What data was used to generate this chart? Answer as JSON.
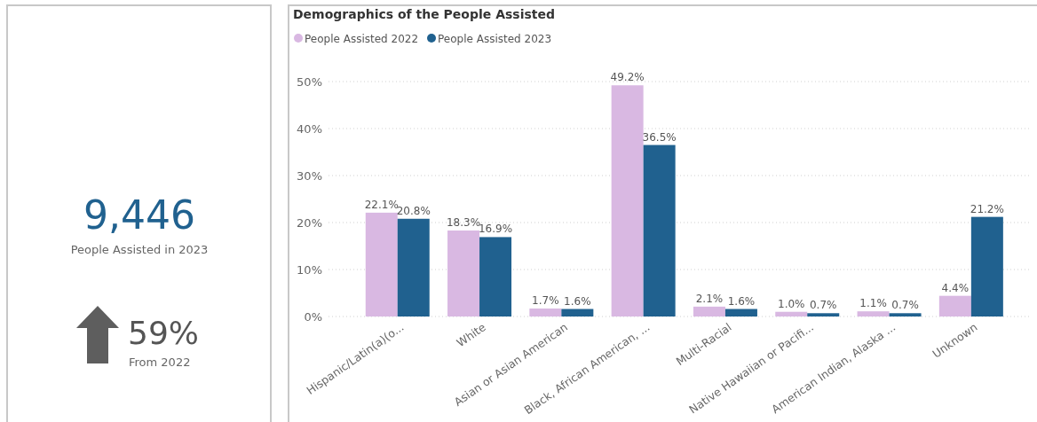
{
  "chart_data": [
    {
      "type": "other",
      "annotations": [
        "9,446",
        "People Assisted in 2023",
        "59%",
        "From 2022"
      ]
    },
    {
      "type": "bar",
      "title": "Demographics of the People Assisted",
      "categories": [
        "Hispanic/Latin(a)(o...",
        "White",
        "Asian or Asian American",
        "Black, African American, ...",
        "Multi-Racial",
        "Native Hawaiian or Pacifi...",
        "American Indian, Alaska ...",
        "Unknown"
      ],
      "series": [
        {
          "name": "People Assisted 2022",
          "color": "#d9b8e2",
          "values": [
            22.1,
            18.3,
            1.7,
            49.2,
            2.1,
            1.0,
            1.1,
            4.4
          ],
          "value_labels": [
            "22.1%",
            "18.3%",
            "1.7%",
            "49.2%",
            "2.1%",
            "1.0%",
            "1.1%",
            "4.4%"
          ]
        },
        {
          "name": "People Assisted 2023",
          "color": "#20618f",
          "values": [
            20.8,
            16.9,
            1.6,
            36.5,
            1.6,
            0.7,
            0.7,
            21.2
          ],
          "value_labels": [
            "20.8%",
            "16.9%",
            "1.6%",
            "36.5%",
            "1.6%",
            "0.7%",
            "0.7%",
            "21.2%"
          ]
        }
      ],
      "ylim": [
        0,
        50
      ],
      "yticks": [
        {
          "value": 0,
          "label": "0%"
        },
        {
          "value": 10,
          "label": "10%"
        },
        {
          "value": 20,
          "label": "20%"
        },
        {
          "value": 30,
          "label": "30%"
        },
        {
          "value": 40,
          "label": "40%"
        },
        {
          "value": 50,
          "label": "50%"
        }
      ],
      "grid": "y",
      "legend": "top left"
    }
  ]
}
